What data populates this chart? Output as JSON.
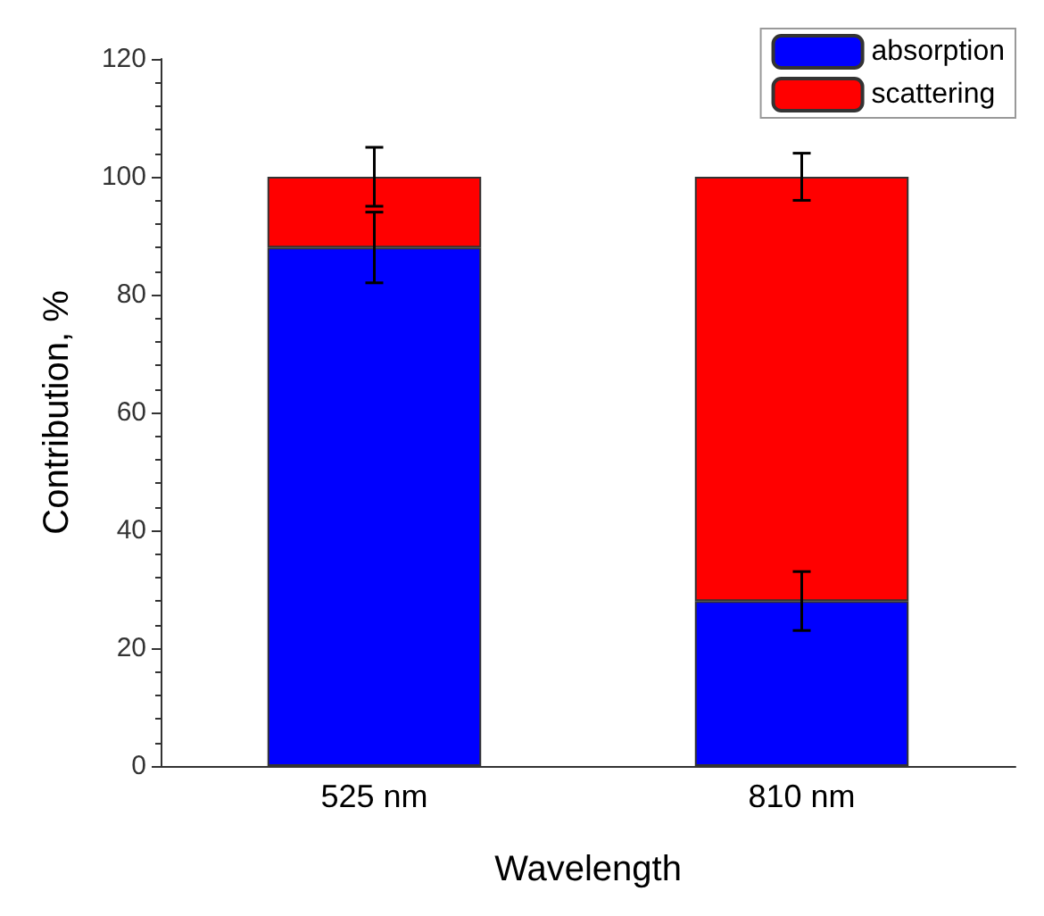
{
  "chart_data": {
    "type": "bar",
    "stacked": true,
    "xlabel": "Wavelength",
    "ylabel": "Contribution, %",
    "categories": [
      "525 nm",
      "810 nm"
    ],
    "series": [
      {
        "name": "absorption",
        "color": "#0000ff",
        "values": [
          88,
          28
        ],
        "errors": [
          6,
          5
        ]
      },
      {
        "name": "scattering",
        "color": "#ff0000",
        "values": [
          12,
          72
        ],
        "errors": [
          5,
          4
        ]
      }
    ],
    "ylim": [
      0,
      120
    ],
    "yticks": [
      0,
      20,
      40,
      60,
      80,
      100,
      120
    ],
    "grid": false,
    "legend": "top right"
  }
}
